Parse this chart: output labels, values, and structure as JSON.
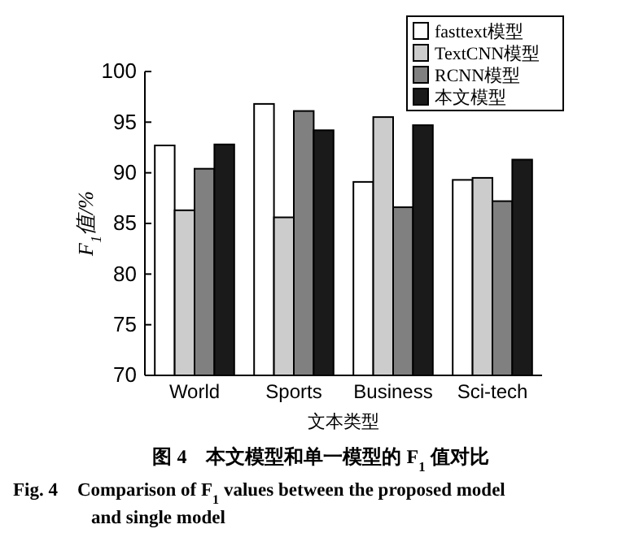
{
  "chart_data": {
    "type": "bar",
    "xlabel": "文本类型",
    "ylabel": "F$_{1}$值/%",
    "categories": [
      "World",
      "Sports",
      "Business",
      "Sci-tech"
    ],
    "series": [
      {
        "name": "fasttext模型",
        "color": "#ffffff",
        "values": [
          92.7,
          96.8,
          89.1,
          89.3
        ]
      },
      {
        "name": "TextCNN模型",
        "color": "#cccccc",
        "values": [
          86.3,
          85.6,
          95.5,
          89.5
        ]
      },
      {
        "name": "RCNN模型",
        "color": "#808080",
        "values": [
          90.4,
          96.1,
          86.6,
          87.2
        ]
      },
      {
        "name": "本文模型",
        "color": "#1a1a1a",
        "values": [
          92.8,
          94.2,
          94.7,
          91.3
        ]
      }
    ],
    "ylim": [
      70,
      100
    ],
    "yticks": [
      70,
      75,
      80,
      85,
      90,
      95,
      100
    ],
    "grid": false,
    "legend": "top right",
    "annotations": [
      "图 4　本文模型和单一模型的 F$_{1}$ 值对比",
      "Fig. 4　Comparison of F$_{1}$ values between the proposed model and single model"
    ]
  }
}
